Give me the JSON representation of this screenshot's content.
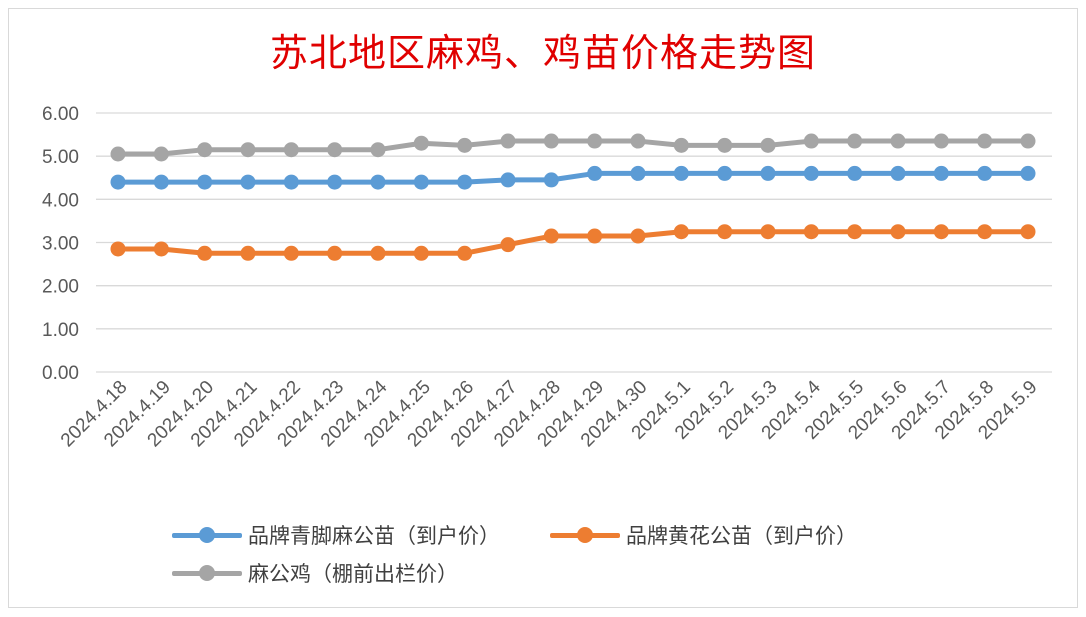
{
  "chart_data": {
    "type": "line",
    "title": "苏北地区麻鸡、鸡苗价格走势图",
    "categories": [
      "2024.4.18",
      "2024.4.19",
      "2024.4.20",
      "2024.4.21",
      "2024.4.22",
      "2024.4.23",
      "2024.4.24",
      "2024.4.25",
      "2024.4.26",
      "2024.4.27",
      "2024.4.28",
      "2024.4.29",
      "2024.4.30",
      "2024.5.1",
      "2024.5.2",
      "2024.5.3",
      "2024.5.4",
      "2024.5.5",
      "2024.5.6",
      "2024.5.7",
      "2024.5.8",
      "2024.5.9"
    ],
    "y_ticks": [
      "0.00",
      "1.00",
      "2.00",
      "3.00",
      "4.00",
      "5.00",
      "6.00"
    ],
    "ylim": [
      0,
      6
    ],
    "grid": "horizontal",
    "legend_position": "bottom",
    "series": [
      {
        "name": "品牌青脚麻公苗（到户价）",
        "color": "#5b9bd5",
        "values": [
          4.4,
          4.4,
          4.4,
          4.4,
          4.4,
          4.4,
          4.4,
          4.4,
          4.4,
          4.45,
          4.45,
          4.6,
          4.6,
          4.6,
          4.6,
          4.6,
          4.6,
          4.6,
          4.6,
          4.6,
          4.6,
          4.6
        ]
      },
      {
        "name": "品牌黄花公苗（到户价）",
        "color": "#ed7d31",
        "values": [
          2.85,
          2.85,
          2.75,
          2.75,
          2.75,
          2.75,
          2.75,
          2.75,
          2.75,
          2.95,
          3.15,
          3.15,
          3.15,
          3.25,
          3.25,
          3.25,
          3.25,
          3.25,
          3.25,
          3.25,
          3.25,
          3.25
        ]
      },
      {
        "name": "麻公鸡（棚前出栏价）",
        "color": "#a5a5a5",
        "values": [
          5.05,
          5.05,
          5.15,
          5.15,
          5.15,
          5.15,
          5.15,
          5.3,
          5.25,
          5.35,
          5.35,
          5.35,
          5.35,
          5.25,
          5.25,
          5.25,
          5.35,
          5.35,
          5.35,
          5.35,
          5.35,
          5.35
        ]
      }
    ]
  }
}
